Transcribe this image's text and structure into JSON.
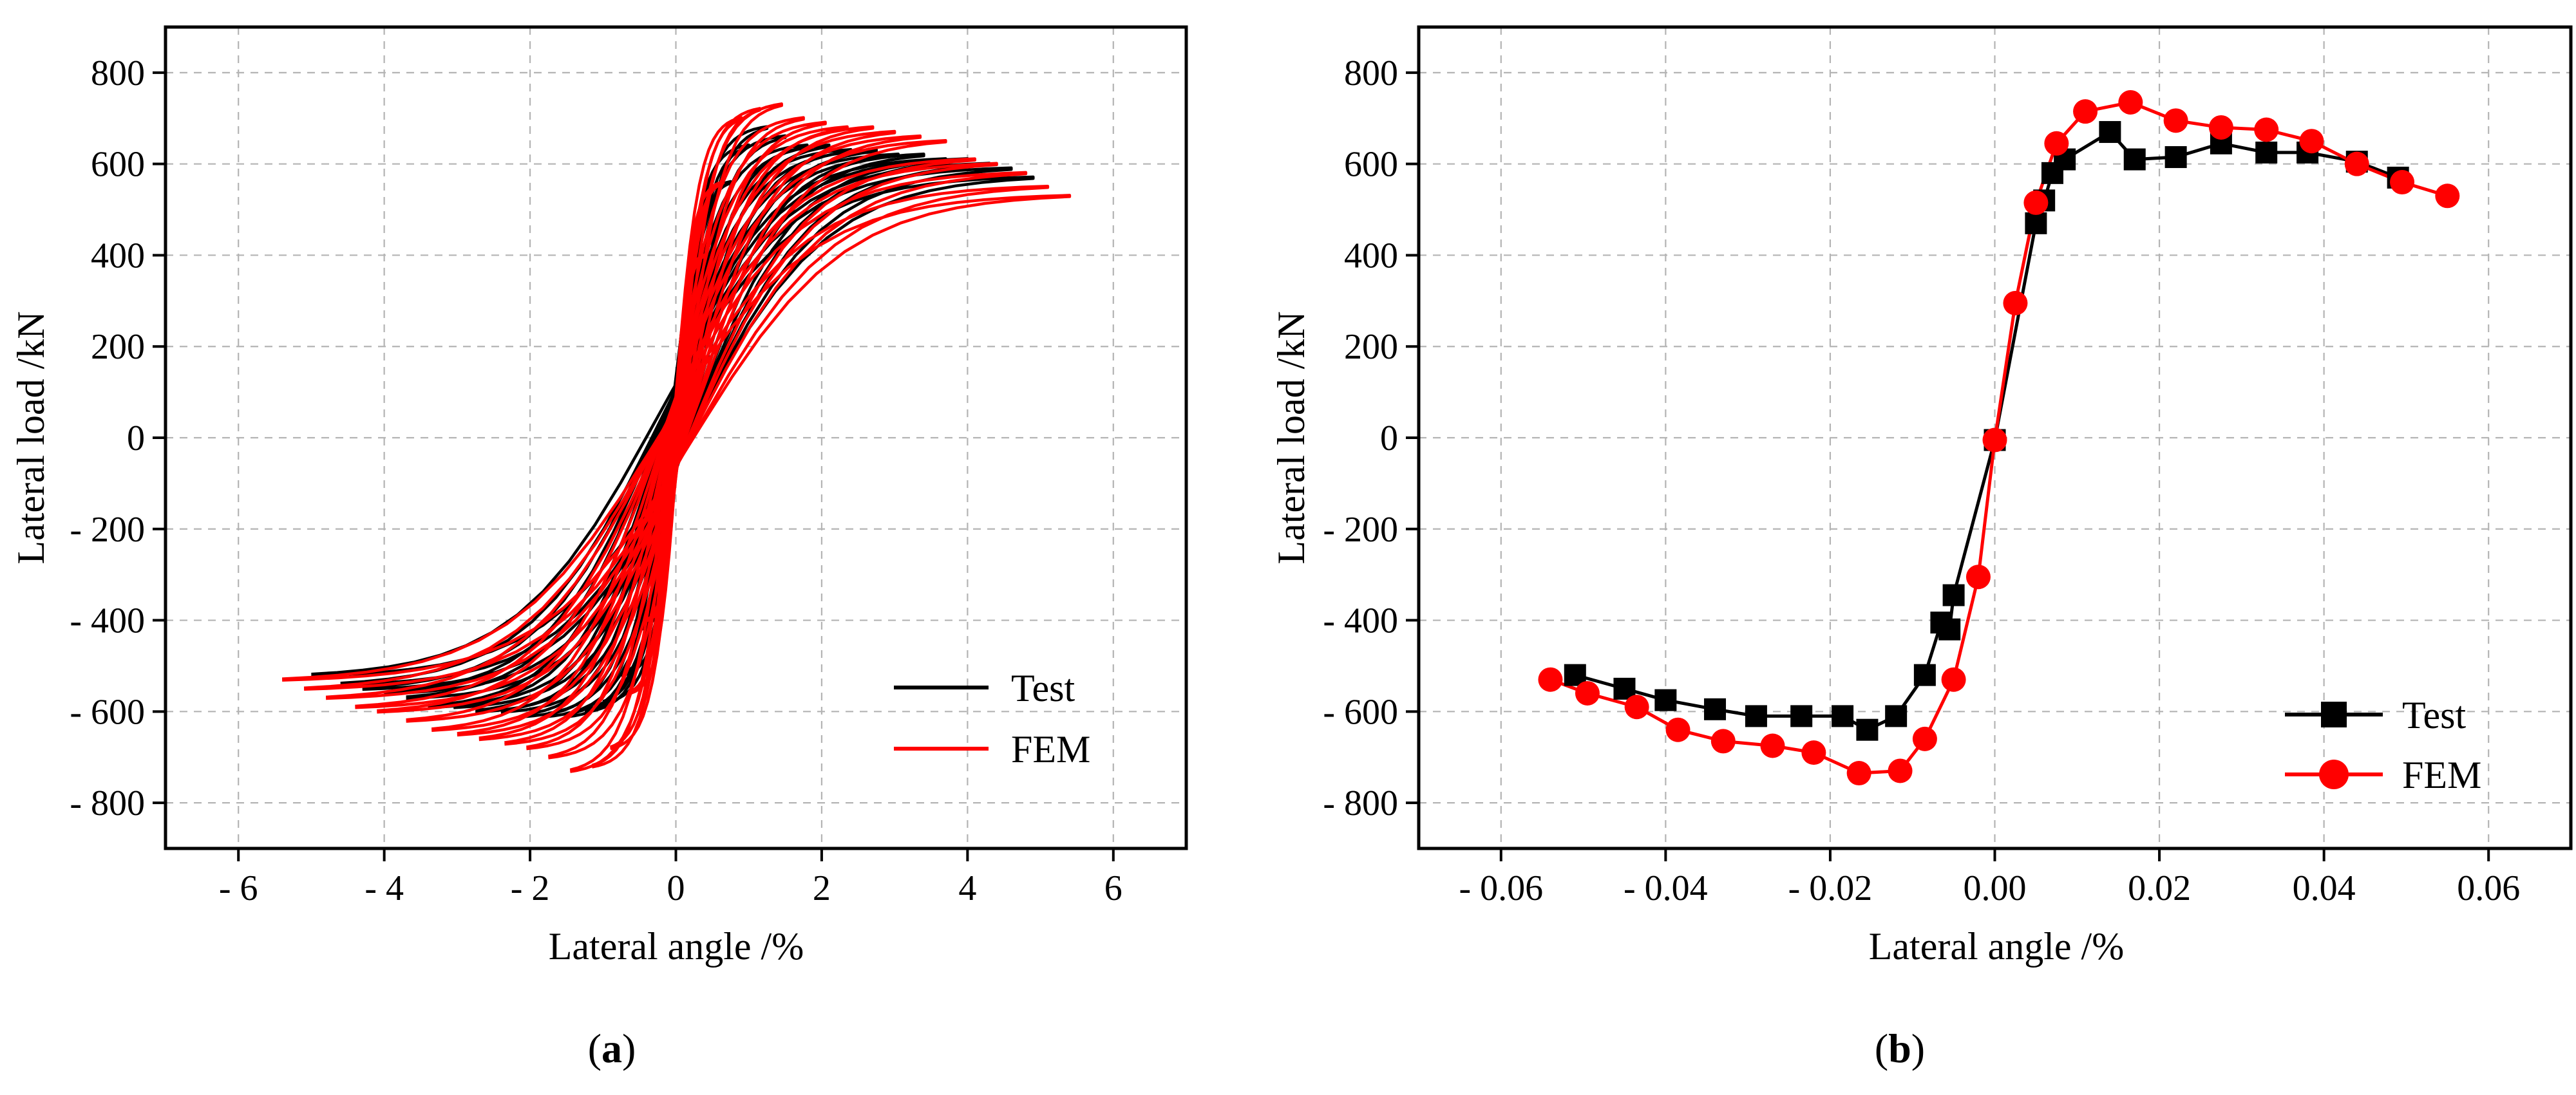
{
  "chart_data": [
    {
      "type": "line",
      "panel": "a",
      "caption_letter": "a",
      "xlabel": "Lateral angle /%",
      "ylabel": "Lateral load /kN",
      "xlim": [
        -7,
        7
      ],
      "ylim": [
        -900,
        900
      ],
      "xticks": [
        -6,
        -4,
        -2,
        0,
        2,
        4,
        6
      ],
      "xtick_labels": [
        "- 6",
        "- 4",
        "- 2",
        "0",
        "2",
        "4",
        "6"
      ],
      "yticks": [
        -800,
        -600,
        -400,
        -200,
        0,
        200,
        400,
        600,
        800
      ],
      "ytick_labels": [
        "- 800",
        "- 600",
        "- 400",
        "- 200",
        "0",
        "200",
        "400",
        "600",
        "800"
      ],
      "grid": true,
      "legend_position": "bottom-right",
      "series": [
        {
          "name": "Test",
          "color": "#000000",
          "kind": "hysteresis",
          "amplitudes": [
            0.15,
            0.3,
            0.5,
            0.75,
            1.0,
            1.25,
            1.5,
            1.8,
            2.1,
            2.4,
            2.75,
            3.05,
            3.4,
            3.7,
            4.0,
            4.3,
            4.6,
            4.9
          ],
          "peak_pos": [
            150,
            280,
            430,
            560,
            640,
            680,
            660,
            640,
            640,
            630,
            630,
            620,
            620,
            610,
            610,
            600,
            590,
            570
          ],
          "amplitudes_neg": [
            0.15,
            0.3,
            0.5,
            0.75,
            1.0,
            1.25,
            1.5,
            1.8,
            2.1,
            2.4,
            2.75,
            3.05,
            3.4,
            3.7,
            4.0,
            4.3,
            4.6,
            5.0,
            5.3
          ],
          "peak_neg": [
            -150,
            -280,
            -420,
            -520,
            -580,
            -600,
            -610,
            -610,
            -610,
            -600,
            -600,
            -590,
            -590,
            -570,
            -560,
            -550,
            -540,
            -520,
            -500
          ],
          "pinch": 0.55
        },
        {
          "name": "FEM",
          "color": "#ff0000",
          "kind": "hysteresis",
          "amplitudes": [
            0.2,
            0.4,
            0.65,
            0.9,
            1.15,
            1.45,
            1.75,
            2.05,
            2.35,
            2.7,
            3.0,
            3.35,
            3.7,
            4.1,
            4.4,
            4.8,
            5.1,
            5.4
          ],
          "peak_pos": [
            200,
            400,
            560,
            700,
            720,
            730,
            700,
            690,
            680,
            680,
            670,
            660,
            650,
            610,
            600,
            580,
            550,
            530
          ],
          "amplitudes_neg": [
            0.2,
            0.4,
            0.65,
            0.9,
            1.15,
            1.45,
            1.75,
            2.05,
            2.35,
            2.7,
            3.0,
            3.35,
            3.7,
            4.1,
            4.4,
            4.8,
            5.1,
            5.4
          ],
          "peak_neg": [
            -200,
            -400,
            -560,
            -680,
            -720,
            -730,
            -700,
            -680,
            -670,
            -660,
            -650,
            -640,
            -620,
            -600,
            -590,
            -570,
            -550,
            -530
          ],
          "pinch": 0.45
        }
      ]
    },
    {
      "type": "line",
      "panel": "b",
      "caption_letter": "b",
      "xlabel": "Lateral angle /%",
      "ylabel": "Lateral load /kN",
      "xlim": [
        -0.07,
        0.07
      ],
      "ylim": [
        -900,
        900
      ],
      "xticks": [
        -0.06,
        -0.04,
        -0.02,
        0.0,
        0.02,
        0.04,
        0.06
      ],
      "xtick_labels": [
        "- 0.06",
        "- 0.04",
        "- 0.02",
        "0.00",
        "0.02",
        "0.04",
        "0.06"
      ],
      "yticks": [
        -800,
        -600,
        -400,
        -200,
        0,
        200,
        400,
        600,
        800
      ],
      "ytick_labels": [
        "- 800",
        "- 600",
        "- 400",
        "- 200",
        "0",
        "200",
        "400",
        "600",
        "800"
      ],
      "grid": true,
      "legend_position": "bottom-right",
      "series": [
        {
          "name": "Test",
          "color": "#000000",
          "marker": "square",
          "x": [
            -0.051,
            -0.045,
            -0.04,
            -0.034,
            -0.029,
            -0.0235,
            -0.0185,
            -0.0155,
            -0.012,
            -0.0085,
            -0.0065,
            -0.0055,
            -0.005,
            0.0,
            0.005,
            0.006,
            0.007,
            0.0085,
            0.014,
            0.017,
            0.022,
            0.0275,
            0.033,
            0.038,
            0.044,
            0.049
          ],
          "y": [
            -520,
            -550,
            -575,
            -595,
            -610,
            -610,
            -610,
            -640,
            -610,
            -520,
            -405,
            -420,
            -345,
            -5,
            470,
            520,
            580,
            610,
            670,
            610,
            615,
            645,
            625,
            625,
            605,
            570
          ]
        },
        {
          "name": "FEM",
          "color": "#ff0000",
          "marker": "circle",
          "x": [
            -0.054,
            -0.0495,
            -0.0435,
            -0.0385,
            -0.033,
            -0.027,
            -0.022,
            -0.0165,
            -0.0115,
            -0.0085,
            -0.005,
            -0.002,
            0.0,
            0.0025,
            0.005,
            0.0075,
            0.011,
            0.0165,
            0.022,
            0.0275,
            0.033,
            0.0385,
            0.044,
            0.0495,
            0.055
          ],
          "y": [
            -530,
            -560,
            -590,
            -640,
            -665,
            -675,
            -690,
            -735,
            -730,
            -660,
            -530,
            -305,
            -5,
            295,
            515,
            645,
            715,
            735,
            695,
            680,
            675,
            650,
            600,
            560,
            530
          ]
        }
      ]
    }
  ]
}
